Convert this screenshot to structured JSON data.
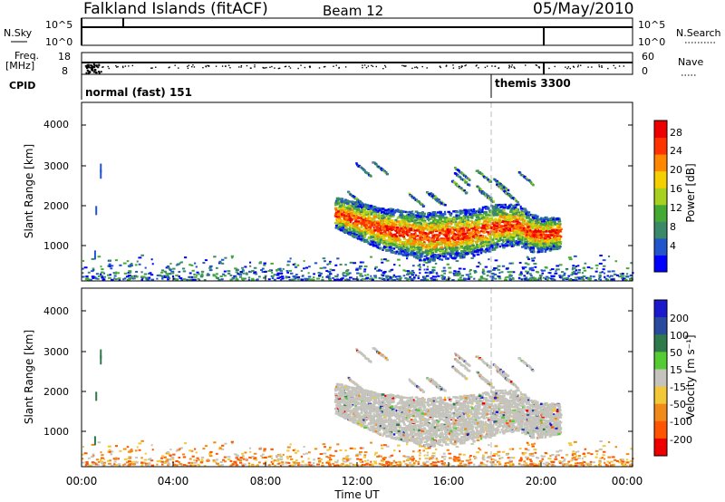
{
  "header": {
    "station": "Falkland Islands (fitACF)",
    "beam": "Beam 12",
    "date": "05/May/2010"
  },
  "sky_panel": {
    "left_label": "N.Sky",
    "right_label": "N.Search",
    "left_ticks": [
      "10^5",
      "10^0"
    ],
    "right_ticks": [
      "10^5",
      "10^0"
    ]
  },
  "freq_panel": {
    "left_label_line1": "Freq.",
    "left_label_line2": "[MHz]",
    "right_label": "Nave",
    "left_ticks": [
      "18",
      "8"
    ],
    "right_ticks": [
      "60",
      "0"
    ]
  },
  "cpid": {
    "label": "CPID",
    "segments": [
      {
        "name": "normal (fast) 151",
        "start_hour": 0
      },
      {
        "name": "themis 3300",
        "start_hour": 18
      }
    ]
  },
  "power_panel": {
    "ylabel": "Slant Range [km]",
    "yticks": [
      "1000",
      "2000",
      "3000",
      "4000"
    ],
    "colorbar_label": "Power [dB]",
    "colorbar_ticks": [
      "4",
      "8",
      "12",
      "16",
      "20",
      "24",
      "28"
    ],
    "colors": [
      "#0000ff",
      "#2255cc",
      "#3a8a6a",
      "#44aa33",
      "#a8d020",
      "#f5d000",
      "#ff8800",
      "#ff3300",
      "#ee0000"
    ]
  },
  "velocity_panel": {
    "ylabel": "Slant Range [km]",
    "yticks": [
      "1000",
      "2000",
      "3000",
      "4000"
    ],
    "colorbar_label": "Velocity [m s⁻¹]",
    "colorbar_ticks": [
      "200",
      "100",
      "50",
      "15",
      "-15",
      "-50",
      "-100",
      "-200"
    ],
    "colors": [
      "#1a1acc",
      "#2a4aa0",
      "#2e7a4a",
      "#55cc33",
      "#c4c4bc",
      "#f2c838",
      "#f28a1a",
      "#ff5500",
      "#ee0000"
    ]
  },
  "x_axis": {
    "label": "Time UT",
    "ticks": [
      "00:00",
      "04:00",
      "08:00",
      "12:00",
      "16:00",
      "20:00",
      "00:00"
    ]
  },
  "chart_data": {
    "type": "heatmap",
    "title": "Falkland Islands (fitACF)",
    "subtitle": "Beam 12",
    "xlabel": "Time UT",
    "ylabel": "Slant Range [km]",
    "xlim_hours": [
      0,
      24
    ],
    "ylim_km": [
      180,
      4600
    ],
    "power_range_db": [
      0,
      30
    ],
    "velocity_range": [
      -200,
      200
    ],
    "echo_band": {
      "start_hour": 11.0,
      "end_hour": 20.8,
      "center_km": [
        [
          11.0,
          1850
        ],
        [
          12.0,
          1650
        ],
        [
          13.0,
          1450
        ],
        [
          14.0,
          1350
        ],
        [
          15.0,
          1250
        ],
        [
          16.0,
          1300
        ],
        [
          17.0,
          1350
        ],
        [
          18.0,
          1500
        ],
        [
          19.0,
          1550
        ],
        [
          19.5,
          1350
        ],
        [
          20.0,
          1300
        ],
        [
          20.8,
          1350
        ]
      ]
    }
  }
}
